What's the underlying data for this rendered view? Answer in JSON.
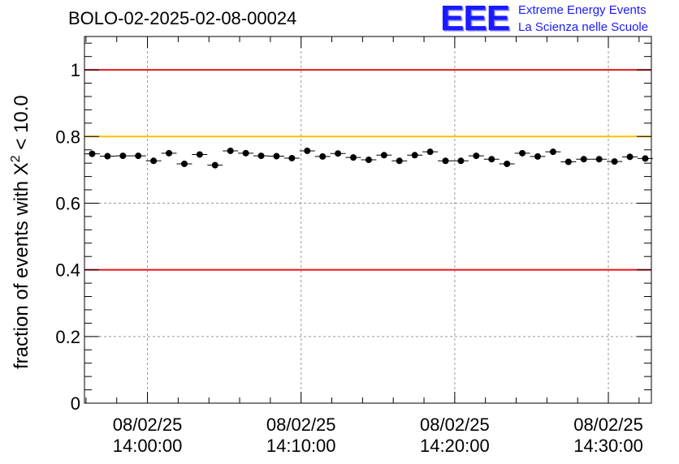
{
  "chart_data": {
    "type": "scatter",
    "title": "BOLO-02-2025-02-08-00024",
    "ylabel_prefix": "fraction of events with ",
    "ylabel_symbol": "Χ",
    "ylabel_sup": "2",
    "ylabel_suffix": " < 10.0",
    "xlabel": "",
    "ylim": [
      0,
      1.1
    ],
    "yticks": [
      {
        "v": 0,
        "label": "0"
      },
      {
        "v": 0.2,
        "label": "0.2"
      },
      {
        "v": 0.4,
        "label": "0.4"
      },
      {
        "v": 0.6,
        "label": "0.6"
      },
      {
        "v": 0.8,
        "label": "0.8"
      },
      {
        "v": 1.0,
        "label": "1"
      }
    ],
    "xlim_minutes": [
      -4.1,
      32.8
    ],
    "xticks": [
      {
        "m": 0,
        "date": "08/02/25",
        "time": "14:00:00"
      },
      {
        "m": 10,
        "date": "08/02/25",
        "time": "14:10:00"
      },
      {
        "m": 20,
        "date": "08/02/25",
        "time": "14:20:00"
      },
      {
        "m": 30,
        "date": "08/02/25",
        "time": "14:30:00"
      }
    ],
    "bin_width_minutes": 1.0,
    "x_start_minutes": -3.6,
    "values": [
      0.748,
      0.741,
      0.742,
      0.742,
      0.727,
      0.75,
      0.718,
      0.746,
      0.714,
      0.757,
      0.75,
      0.742,
      0.741,
      0.735,
      0.757,
      0.74,
      0.749,
      0.737,
      0.73,
      0.744,
      0.727,
      0.744,
      0.754,
      0.727,
      0.727,
      0.742,
      0.732,
      0.718,
      0.75,
      0.74,
      0.754,
      0.724,
      0.732,
      0.732,
      0.725,
      0.739,
      0.734
    ],
    "error": 0.009,
    "reference_lines": [
      {
        "y": 1.0,
        "color": "#e8141c",
        "name": "upper-limit-line"
      },
      {
        "y": 0.8,
        "color": "#ffc000",
        "name": "warning-line"
      },
      {
        "y": 0.4,
        "color": "#e8141c",
        "name": "lower-limit-line"
      }
    ],
    "grid": true
  },
  "logo": {
    "mark": "EEE",
    "line1": "Extreme Energy Events",
    "line2": "La Scienza nelle Scuole",
    "color": "#1a1aff"
  }
}
